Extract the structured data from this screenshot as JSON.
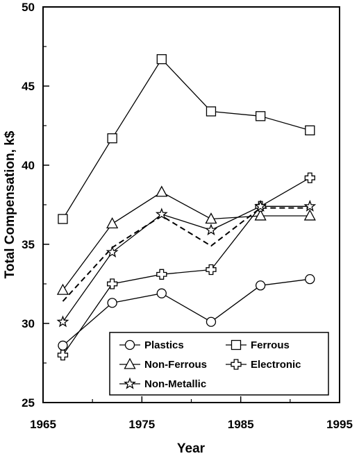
{
  "chart_data": {
    "type": "line",
    "title": "",
    "xlabel": "Year",
    "ylabel": "Total Compensation, k$",
    "xlim": [
      1965,
      1995
    ],
    "ylim": [
      25,
      50
    ],
    "x_ticks": [
      "1965",
      "1975",
      "1985",
      "1995"
    ],
    "y_ticks": [
      "25",
      "30",
      "35",
      "40",
      "45",
      "50"
    ],
    "grid": false,
    "legend_position": "bottom-right",
    "series": [
      {
        "name": "Plastics",
        "marker": "circle",
        "line": "solid",
        "x": [
          1967,
          1972,
          1977,
          1982,
          1987,
          1992
        ],
        "y": [
          28.6,
          31.3,
          31.9,
          30.1,
          32.4,
          32.8
        ]
      },
      {
        "name": "Ferrous",
        "marker": "square",
        "line": "solid",
        "x": [
          1967,
          1972,
          1977,
          1982,
          1987,
          1992
        ],
        "y": [
          36.6,
          41.7,
          46.7,
          43.4,
          43.1,
          42.2
        ]
      },
      {
        "name": "Non-Ferrous",
        "marker": "triangle",
        "line": "solid",
        "x": [
          1967,
          1972,
          1977,
          1982,
          1987,
          1992
        ],
        "y": [
          32.1,
          36.3,
          38.3,
          36.6,
          36.8,
          36.8
        ]
      },
      {
        "name": "Electronic",
        "marker": "cross",
        "line": "solid",
        "x": [
          1967,
          1972,
          1977,
          1982,
          1987,
          1992
        ],
        "y": [
          28.0,
          32.5,
          33.1,
          33.4,
          37.4,
          39.2
        ]
      },
      {
        "name": "Non-Metallic",
        "marker": "star",
        "line": "solid",
        "x": [
          1967,
          1972,
          1977,
          1982,
          1987,
          1992
        ],
        "y": [
          30.1,
          34.5,
          36.9,
          35.9,
          37.4,
          37.4
        ]
      },
      {
        "name": "",
        "marker": "none",
        "line": "dashed",
        "x": [
          1967,
          1972,
          1977,
          1982,
          1987,
          1992
        ],
        "y": [
          31.4,
          34.8,
          36.8,
          34.9,
          37.3,
          37.3
        ]
      }
    ]
  }
}
